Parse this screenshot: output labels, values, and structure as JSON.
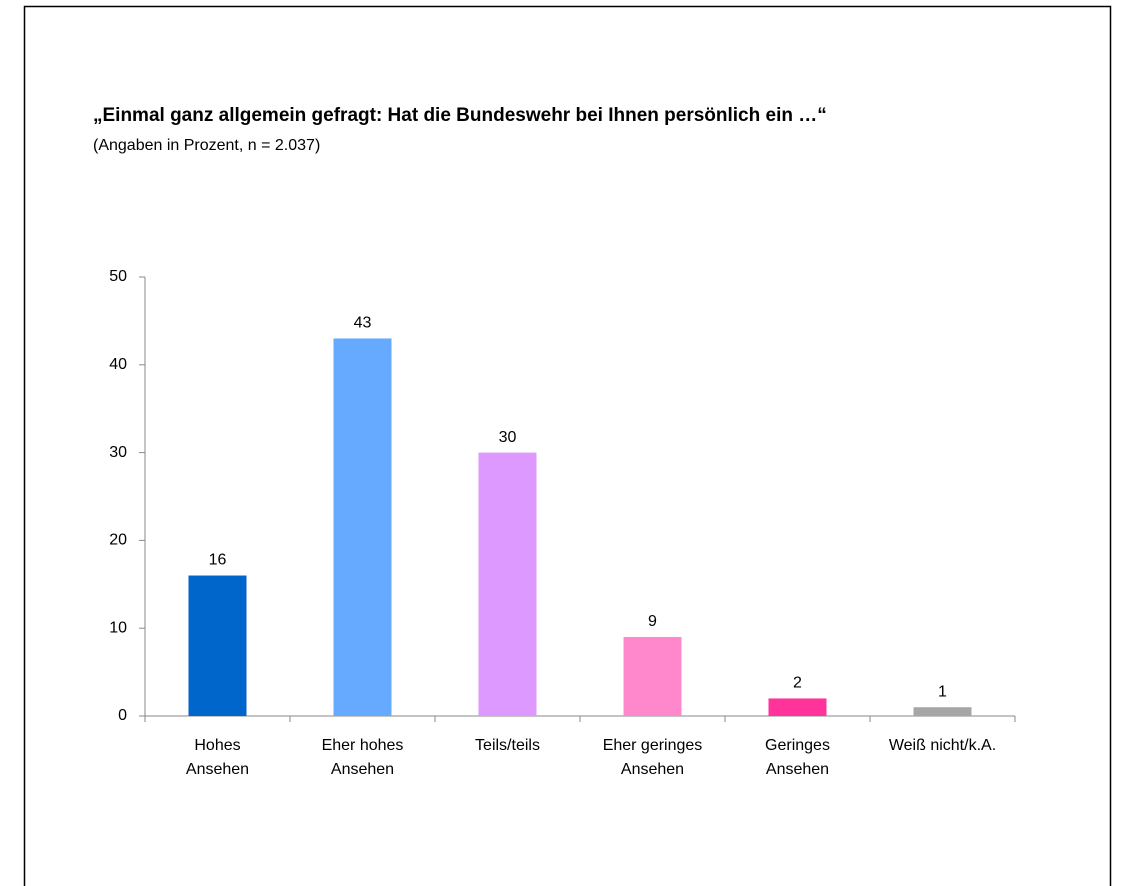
{
  "chart_data": {
    "type": "bar",
    "title": "„Einmal ganz allgemein gefragt: Hat die Bundeswehr bei Ihnen persönlich ein …“",
    "subtitle": "(Angaben in Prozent, n = 2.037)",
    "categories": [
      [
        "Hohes",
        "Ansehen"
      ],
      [
        "Eher hohes",
        "Ansehen"
      ],
      [
        "Teils/teils"
      ],
      [
        "Eher geringes",
        "Ansehen"
      ],
      [
        "Geringes",
        "Ansehen"
      ],
      [
        "Weiß nicht/k.A."
      ]
    ],
    "values": [
      16,
      43,
      30,
      9,
      2,
      1
    ],
    "colors": [
      "#0066cc",
      "#66aaff",
      "#dd99ff",
      "#ff88cc",
      "#ff3399",
      "#a6a6a6"
    ],
    "ylim": [
      0,
      50
    ],
    "yticks": [
      0,
      10,
      20,
      30,
      40,
      50
    ]
  }
}
